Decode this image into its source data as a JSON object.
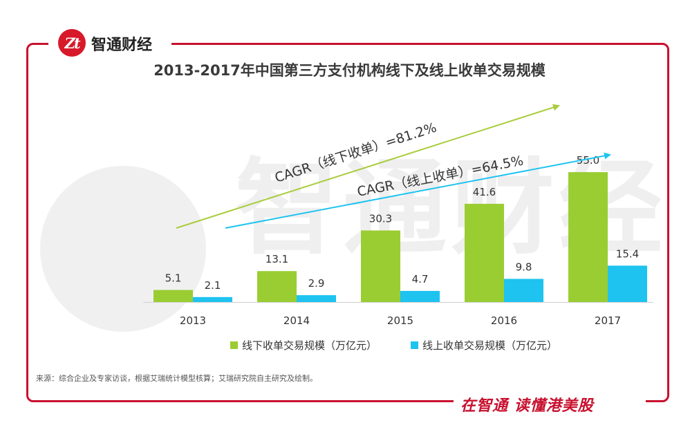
{
  "brand": {
    "logo_text": "Zt",
    "name": "智通财经",
    "watermark": "智通财经"
  },
  "slogan": "在智通 读懂港美股",
  "colors": {
    "frame": "#c8102e",
    "offline": "#9acd32",
    "online": "#1ec3f0",
    "arrow_offline": "#a9cc3c",
    "arrow_online": "#1ec3f0"
  },
  "chart_data": {
    "type": "bar",
    "title": "2013-2017年中国第三方支付机构线下及线上收单交易规模",
    "categories": [
      "2013",
      "2014",
      "2015",
      "2016",
      "2017"
    ],
    "series": [
      {
        "name": "线下收单交易规模（万亿元）",
        "values": [
          5.1,
          13.1,
          30.3,
          41.6,
          55.0
        ],
        "labels": [
          "5.1",
          "13.1",
          "30.3",
          "41.6",
          "55.0"
        ]
      },
      {
        "name": "线上收单交易规模（万亿元）",
        "values": [
          2.1,
          2.9,
          4.7,
          9.8,
          15.4
        ],
        "labels": [
          "2.1",
          "2.9",
          "4.7",
          "9.8",
          "15.4"
        ]
      }
    ],
    "ylim": [
      0,
      60
    ],
    "annotations": [
      {
        "text": "CAGR（线下收单）=81.2%",
        "series": "offline"
      },
      {
        "text": "CAGR（线上收单）=64.5%",
        "series": "online"
      }
    ],
    "legend_position": "bottom"
  },
  "source": "来源：综合企业及专家访谈，根据艾瑞统计模型核算；艾瑞研究院自主研究及绘制。"
}
